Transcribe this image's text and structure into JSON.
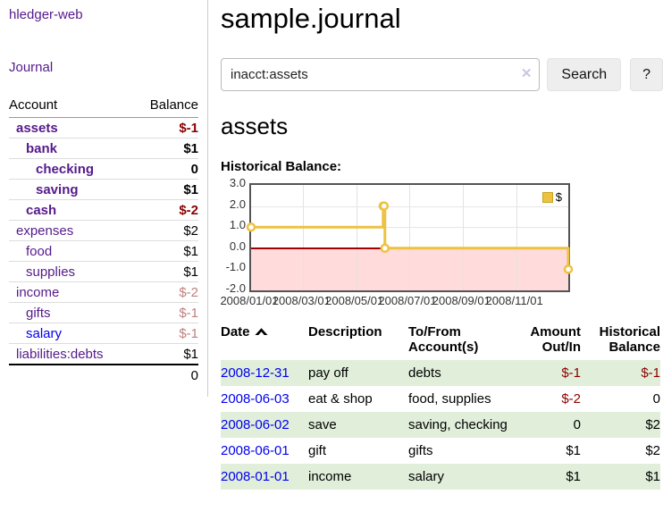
{
  "app": {
    "title": "hledger-web"
  },
  "sidebar": {
    "journal_link": "Journal",
    "table": {
      "account_header": "Account",
      "balance_header": "Balance",
      "rows": [
        {
          "name": "assets",
          "balance": "$-1"
        },
        {
          "name": "bank",
          "balance": "$1"
        },
        {
          "name": "checking",
          "balance": "0"
        },
        {
          "name": "saving",
          "balance": "$1"
        },
        {
          "name": "cash",
          "balance": "$-2"
        },
        {
          "name": "expenses",
          "balance": "$2"
        },
        {
          "name": "food",
          "balance": "$1"
        },
        {
          "name": "supplies",
          "balance": "$1"
        },
        {
          "name": "income",
          "balance": "$-2"
        },
        {
          "name": "gifts",
          "balance": "$-1"
        },
        {
          "name": "salary",
          "balance": "$-1"
        },
        {
          "name": "liabilities:debts",
          "balance": "$1"
        }
      ],
      "total": "0"
    }
  },
  "header": {
    "title": "sample.journal"
  },
  "search": {
    "value": "inacct:assets",
    "clear_icon": "✕",
    "button_label": "Search",
    "help_label": "?"
  },
  "account_page": {
    "heading": "assets",
    "chart_label": "Historical Balance:"
  },
  "chart_data": {
    "type": "line",
    "step": true,
    "series": [
      {
        "name": "$",
        "color": "#EDC240",
        "points": [
          [
            "2008-01-01",
            1
          ],
          [
            "2008-06-01",
            2
          ],
          [
            "2008-06-02",
            2
          ],
          [
            "2008-06-03",
            0
          ],
          [
            "2008-12-31",
            -1
          ]
        ]
      }
    ],
    "xrange": [
      "2008-01-01",
      "2008-12-31"
    ],
    "ylim": [
      -2,
      3
    ],
    "xticks": [
      "2008-01-01",
      "2008-03-01",
      "2008-05-01",
      "2008-07-01",
      "2008-09-01",
      "2008-11-01"
    ],
    "xtick_labels": [
      "2008/01/01",
      "2008/03/01",
      "2008/05/01",
      "2008/07/01",
      "2008/09/01",
      "2008/11/01"
    ],
    "yticks": [
      3,
      2,
      1,
      0,
      -1,
      -2
    ],
    "ytick_labels": [
      "3.0",
      "2.0",
      "1.0",
      "0.0",
      "-1.0",
      "-2.0"
    ],
    "legend": {
      "label": "$",
      "position": "top-right"
    },
    "negative_region_color": "#ffdbdb",
    "zero_line_color": "#a00000",
    "grid": true
  },
  "transactions": {
    "headers": {
      "date": "Date",
      "description": "Description",
      "tofrom_line1": "To/From",
      "tofrom_line2": "Account(s)",
      "amount_line1": "Amount",
      "amount_line2": "Out/In",
      "balance_line1": "Historical",
      "balance_line2": "Balance"
    },
    "rows": [
      {
        "date": "2008-12-31",
        "description": "pay off",
        "accounts": "debts",
        "amount": "$-1",
        "balance": "$-1"
      },
      {
        "date": "2008-06-03",
        "description": "eat & shop",
        "accounts": "food, supplies",
        "amount": "$-2",
        "balance": "0"
      },
      {
        "date": "2008-06-02",
        "description": "save",
        "accounts": "saving, checking",
        "amount": "0",
        "balance": "$2"
      },
      {
        "date": "2008-06-01",
        "description": "gift",
        "accounts": "gifts",
        "amount": "$1",
        "balance": "$2"
      },
      {
        "date": "2008-01-01",
        "description": "income",
        "accounts": "salary",
        "amount": "$1",
        "balance": "$1"
      }
    ]
  }
}
